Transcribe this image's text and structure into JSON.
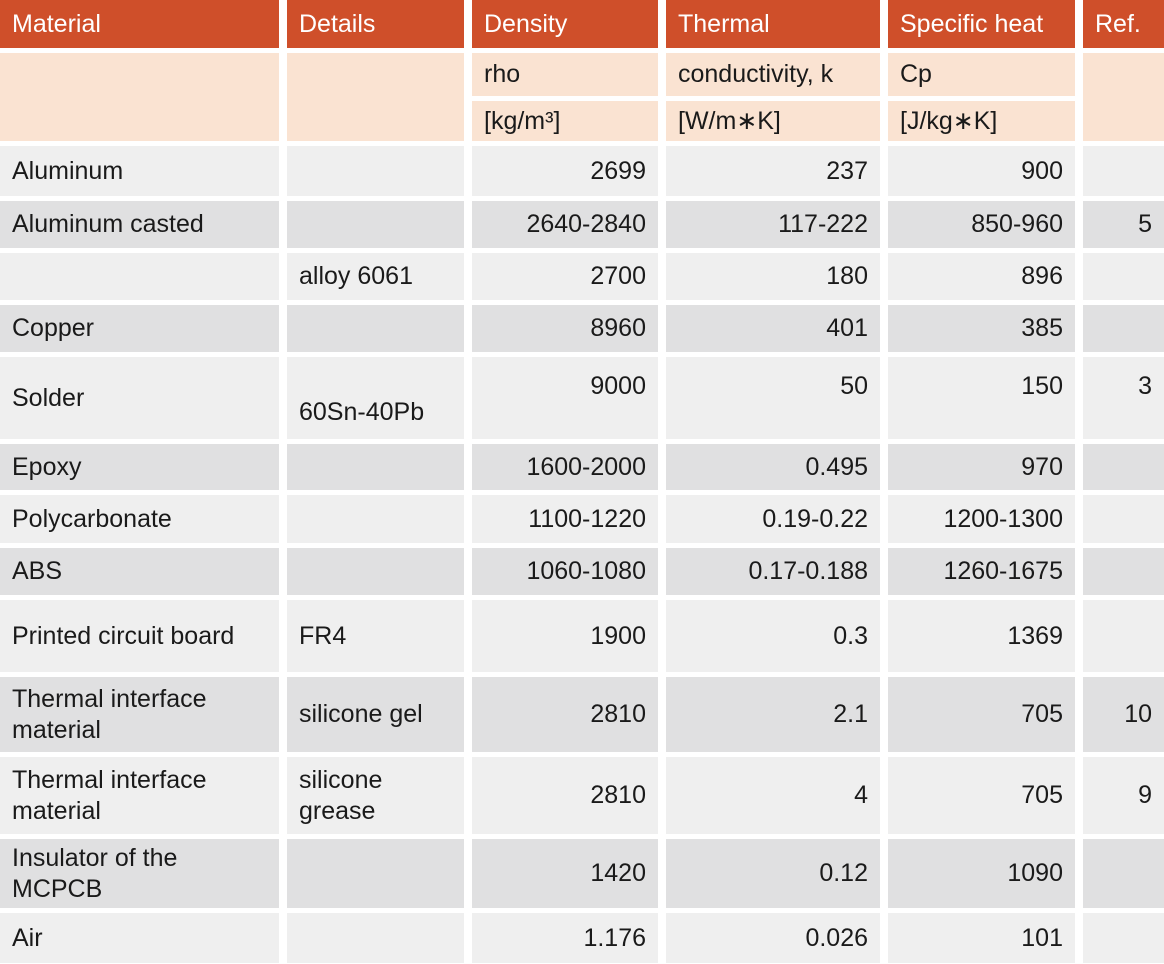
{
  "header": {
    "columns": [
      {
        "label": "Material",
        "sub": "",
        "unit": ""
      },
      {
        "label": "Details",
        "sub": "",
        "unit": ""
      },
      {
        "label": "Density",
        "sub": "rho",
        "unit": "[kg/m³]"
      },
      {
        "label": "Thermal",
        "sub": "conductivity, k",
        "unit": "[W/m∗K]"
      },
      {
        "label": "Specific heat",
        "sub": "Cp",
        "unit": "[J/kg∗K]"
      },
      {
        "label": "Ref.",
        "sub": "",
        "unit": ""
      }
    ]
  },
  "rows": [
    {
      "material": "Aluminum",
      "details": "",
      "density": "2699",
      "thermal_conductivity": "237",
      "specific_heat": "900",
      "ref": ""
    },
    {
      "material": "Aluminum casted",
      "details": "",
      "density": "2640-2840",
      "thermal_conductivity": "117-222",
      "specific_heat": "850-960",
      "ref": "5"
    },
    {
      "material": "",
      "details": "alloy 6061",
      "density": "2700",
      "thermal_conductivity": "180",
      "specific_heat": "896",
      "ref": ""
    },
    {
      "material": "Copper",
      "details": "",
      "density": "8960",
      "thermal_conductivity": "401",
      "specific_heat": "385",
      "ref": ""
    },
    {
      "material": "Solder",
      "details": "60Sn-40Pb",
      "density": "9000",
      "thermal_conductivity": "50",
      "specific_heat": "150",
      "ref": "3"
    },
    {
      "material": "Epoxy",
      "details": "",
      "density": "1600-2000",
      "thermal_conductivity": "0.495",
      "specific_heat": "970",
      "ref": ""
    },
    {
      "material": "Polycarbonate",
      "details": "",
      "density": "1100-1220",
      "thermal_conductivity": "0.19-0.22",
      "specific_heat": "1200-1300",
      "ref": ""
    },
    {
      "material": "ABS",
      "details": "",
      "density": "1060-1080",
      "thermal_conductivity": "0.17-0.188",
      "specific_heat": "1260-1675",
      "ref": ""
    },
    {
      "material": "Printed circuit board",
      "details": "FR4",
      "density": "1900",
      "thermal_conductivity": "0.3",
      "specific_heat": "1369",
      "ref": ""
    },
    {
      "material": "Thermal interface material",
      "details": "silicone gel",
      "density": "2810",
      "thermal_conductivity": "2.1",
      "specific_heat": "705",
      "ref": "10"
    },
    {
      "material": "Thermal interface material",
      "details": "silicone grease",
      "density": "2810",
      "thermal_conductivity": "4",
      "specific_heat": "705",
      "ref": "9"
    },
    {
      "material": "Insulator of the MCPCB",
      "details": "",
      "density": "1420",
      "thermal_conductivity": "0.12",
      "specific_heat": "1090",
      "ref": ""
    },
    {
      "material": "Air",
      "details": "",
      "density": "1.176",
      "thermal_conductivity": "0.026",
      "specific_heat": "101",
      "ref": ""
    }
  ],
  "colors": {
    "header_bg": "#cf4f2a",
    "subheader_bg": "#fae3d2",
    "row_light": "#efefef",
    "row_dark": "#e0e0e1",
    "header_text": "#ffffff",
    "body_text": "#1a1a1a"
  }
}
